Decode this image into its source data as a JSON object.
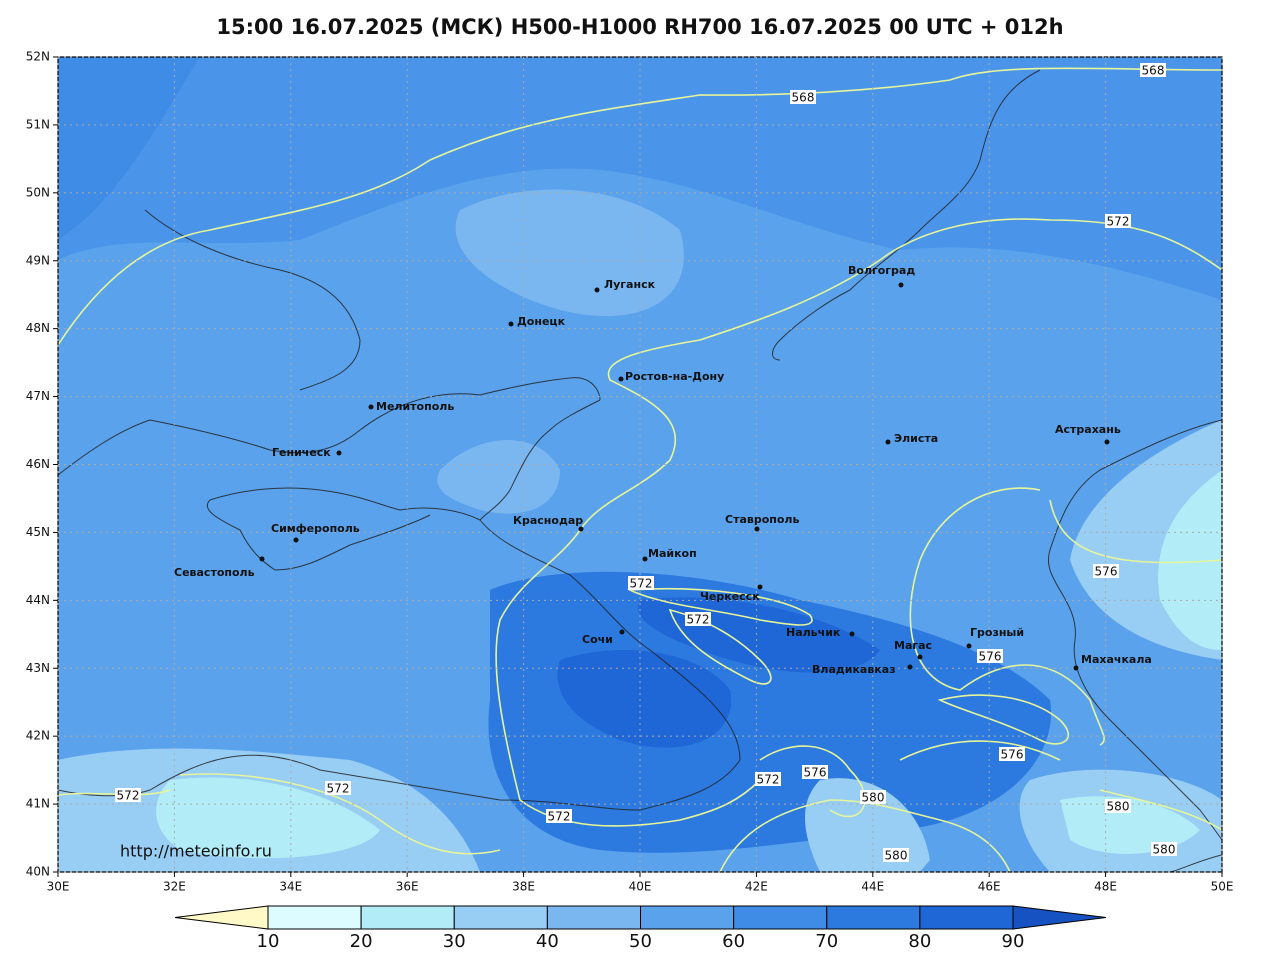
{
  "title": "15:00 16.07.2025 (МСК) H500-H1000 RH700 16.07.2025 00 UTC + 012h",
  "map": {
    "lon_ticks": [
      {
        "value": 30,
        "label": "30E"
      },
      {
        "value": 32,
        "label": "32E"
      },
      {
        "value": 34,
        "label": "34E"
      },
      {
        "value": 36,
        "label": "36E"
      },
      {
        "value": 38,
        "label": "38E"
      },
      {
        "value": 40,
        "label": "40E"
      },
      {
        "value": 42,
        "label": "42E"
      },
      {
        "value": 44,
        "label": "44E"
      },
      {
        "value": 46,
        "label": "46E"
      },
      {
        "value": 48,
        "label": "48E"
      },
      {
        "value": 50,
        "label": "50E"
      }
    ],
    "lat_ticks": [
      {
        "value": 40,
        "label": "40N"
      },
      {
        "value": 41,
        "label": "41N"
      },
      {
        "value": 42,
        "label": "42N"
      },
      {
        "value": 43,
        "label": "43N"
      },
      {
        "value": 44,
        "label": "44N"
      },
      {
        "value": 45,
        "label": "45N"
      },
      {
        "value": 46,
        "label": "46N"
      },
      {
        "value": 47,
        "label": "47N"
      },
      {
        "value": 48,
        "label": "48N"
      },
      {
        "value": 49,
        "label": "49N"
      },
      {
        "value": 50,
        "label": "50N"
      },
      {
        "value": 51,
        "label": "51N"
      },
      {
        "value": 52,
        "label": "52N"
      }
    ],
    "cities": [
      "Луганск",
      "Донецк",
      "Волгоград",
      "Ростов-на-Дону",
      "Мелитополь",
      "Геническ",
      "Элиста",
      "Астрахань",
      "Симферополь",
      "Севастополь",
      "Краснодар",
      "Ставрополь",
      "Майкоп",
      "Черкесск",
      "Сочи",
      "Нальчик",
      "Магас",
      "Грозный",
      "Владикавказ",
      "Махачкала"
    ],
    "contour_labels": [
      568,
      568,
      572,
      572,
      572,
      572,
      572,
      572,
      572,
      576,
      576,
      576,
      576,
      580,
      580,
      580,
      580
    ],
    "contour_color": "#e6f59a",
    "source": "http://meteoinfo.ru"
  },
  "colorbar": {
    "ticks": [
      10,
      20,
      30,
      40,
      50,
      60,
      70,
      80,
      90
    ],
    "colors": [
      "#fff9c8",
      "#dcfcff",
      "#b2ecf7",
      "#98cdf4",
      "#7ab6f0",
      "#5aa2ec",
      "#3f8ce6",
      "#2c79df",
      "#1f66d6",
      "#1652c2"
    ]
  }
}
